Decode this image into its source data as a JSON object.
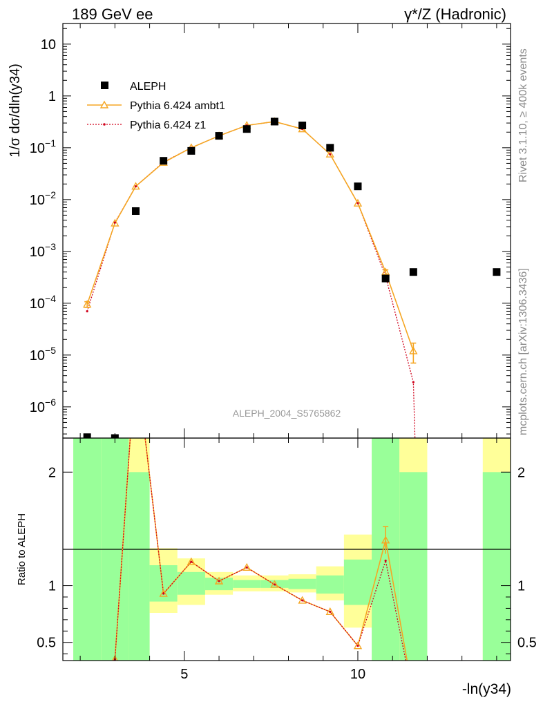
{
  "header": {
    "left_label": "189 GeV ee",
    "right_label": "γ*/Z (Hadronic)"
  },
  "side_labels": {
    "rivet": "Rivet 3.1.10, ≥ 400k events",
    "mcplots": "mcplots.cern.ch [arXiv:1306.3436]"
  },
  "watermark": "ALEPH_2004_S5765862",
  "chart_data": [
    {
      "type": "scatter",
      "panel": "main",
      "ylabel": "1/σ dσ/dln(y34)",
      "yscale": "log",
      "ylim": [
        2.5e-07,
        25
      ],
      "xlim": [
        1.5,
        14.4
      ],
      "legend_position": "top-left",
      "series": [
        {
          "name": "ALEPH",
          "style": "black-square-markers",
          "color": "#000000",
          "x": [
            2.2,
            3.0,
            3.6,
            4.4,
            5.2,
            6.0,
            6.8,
            7.6,
            8.4,
            9.2,
            10.0,
            10.8,
            11.6,
            14.0
          ],
          "y": [
            2.6e-07,
            2.5e-07,
            0.006,
            0.056,
            0.087,
            0.17,
            0.23,
            0.32,
            0.27,
            0.1,
            0.018,
            0.0003,
            0.0004,
            0.0004
          ]
        },
        {
          "name": "Pythia 6.424 ambt1",
          "style": "orange-line-triangle-markers",
          "color": "#f5a623",
          "x": [
            2.2,
            3.0,
            3.6,
            4.4,
            5.2,
            6.0,
            6.8,
            7.6,
            8.4,
            9.2,
            10.0,
            10.8,
            11.6
          ],
          "y": [
            9.5e-05,
            0.0035,
            0.018,
            0.052,
            0.1,
            0.17,
            0.27,
            0.32,
            0.23,
            0.075,
            0.0085,
            0.0004,
            1.2e-05
          ],
          "yerr": [
            1.2e-05,
            0,
            0,
            0,
            0,
            0,
            0,
            0,
            0,
            0,
            0,
            4e-05,
            5e-06
          ]
        },
        {
          "name": "Pythia 6.424 z1",
          "style": "red-dotted-line-dot-markers",
          "color": "#d0021b",
          "x": [
            2.2,
            3.0,
            3.6,
            4.4,
            5.2,
            6.0,
            6.8,
            7.6,
            8.4,
            9.2,
            10.0,
            10.8,
            11.6,
            11.65
          ],
          "y": [
            7e-05,
            0.0036,
            0.018,
            0.053,
            0.1,
            0.17,
            0.27,
            0.32,
            0.23,
            0.075,
            0.0085,
            0.00033,
            3e-06,
            2e-07
          ]
        }
      ]
    },
    {
      "type": "line",
      "panel": "ratio",
      "ylabel": "Ratio to ALEPH",
      "xlabel": "-ln(y34)",
      "ylim": [
        0.34,
        2.3
      ],
      "xlim": [
        1.5,
        14.4
      ],
      "x_ticks": [
        5,
        10
      ],
      "y_ticks": [
        0.5,
        1,
        2
      ],
      "reference_line": 1,
      "bands": [
        {
          "xlo": 1.8,
          "xhi": 2.6,
          "inner": [
            0.2,
            3.0
          ],
          "outer": [
            0.2,
            3.0
          ]
        },
        {
          "xlo": 2.6,
          "xhi": 3.4,
          "inner": [
            0.2,
            3.0
          ],
          "outer": [
            0.2,
            3.0
          ]
        },
        {
          "xlo": 3.4,
          "xhi": 4.0,
          "inner": [
            0.2,
            2.0
          ],
          "outer": [
            0.2,
            2.3
          ]
        },
        {
          "xlo": 4.0,
          "xhi": 4.8,
          "inner": [
            0.86,
            1.18
          ],
          "outer": [
            0.76,
            1.33
          ]
        },
        {
          "xlo": 4.8,
          "xhi": 5.6,
          "inner": [
            0.92,
            1.12
          ],
          "outer": [
            0.83,
            1.24
          ]
        },
        {
          "xlo": 5.6,
          "xhi": 6.4,
          "inner": [
            0.96,
            1.07
          ],
          "outer": [
            0.92,
            1.12
          ]
        },
        {
          "xlo": 6.4,
          "xhi": 7.2,
          "inner": [
            0.98,
            1.05
          ],
          "outer": [
            0.95,
            1.09
          ]
        },
        {
          "xlo": 7.2,
          "xhi": 8.0,
          "inner": [
            0.98,
            1.05
          ],
          "outer": [
            0.95,
            1.09
          ]
        },
        {
          "xlo": 8.0,
          "xhi": 8.8,
          "inner": [
            0.97,
            1.06
          ],
          "outer": [
            0.94,
            1.1
          ]
        },
        {
          "xlo": 8.8,
          "xhi": 9.6,
          "inner": [
            0.93,
            1.09
          ],
          "outer": [
            0.87,
            1.17
          ]
        },
        {
          "xlo": 9.6,
          "xhi": 10.4,
          "inner": [
            0.83,
            1.23
          ],
          "outer": [
            0.63,
            1.45
          ]
        },
        {
          "xlo": 10.4,
          "xhi": 11.2,
          "inner": [
            0.2,
            3.0
          ],
          "outer": [
            0.2,
            3.0
          ]
        },
        {
          "xlo": 11.2,
          "xhi": 12.0,
          "inner": [
            0.2,
            2.0
          ],
          "outer": [
            0.2,
            2.3
          ]
        },
        {
          "xlo": 13.6,
          "xhi": 14.4,
          "inner": [
            0.2,
            2.0
          ],
          "outer": [
            0.2,
            2.3
          ]
        }
      ],
      "series": [
        {
          "name": "Pythia 6.424 ambt1",
          "color": "#f5a623",
          "x": [
            2.2,
            3.0,
            3.6,
            4.4,
            5.2,
            6.0,
            6.8,
            7.6,
            8.4,
            9.2,
            10.0,
            10.8,
            11.6
          ],
          "y": [
            0.12,
            0.35,
            3.0,
            0.93,
            1.21,
            1.04,
            1.16,
            1.01,
            0.87,
            0.77,
            0.47,
            1.4,
            0.03
          ]
        },
        {
          "name": "Pythia 6.424 z1",
          "color": "#d0021b",
          "x": [
            2.2,
            3.0,
            3.6,
            4.4,
            5.2,
            6.0,
            6.8,
            7.6,
            8.4,
            9.2,
            10.0,
            10.8,
            11.6
          ],
          "y": [
            0.12,
            0.35,
            3.0,
            0.93,
            1.21,
            1.04,
            1.16,
            1.01,
            0.87,
            0.77,
            0.47,
            1.22,
            0.01
          ]
        }
      ]
    }
  ]
}
